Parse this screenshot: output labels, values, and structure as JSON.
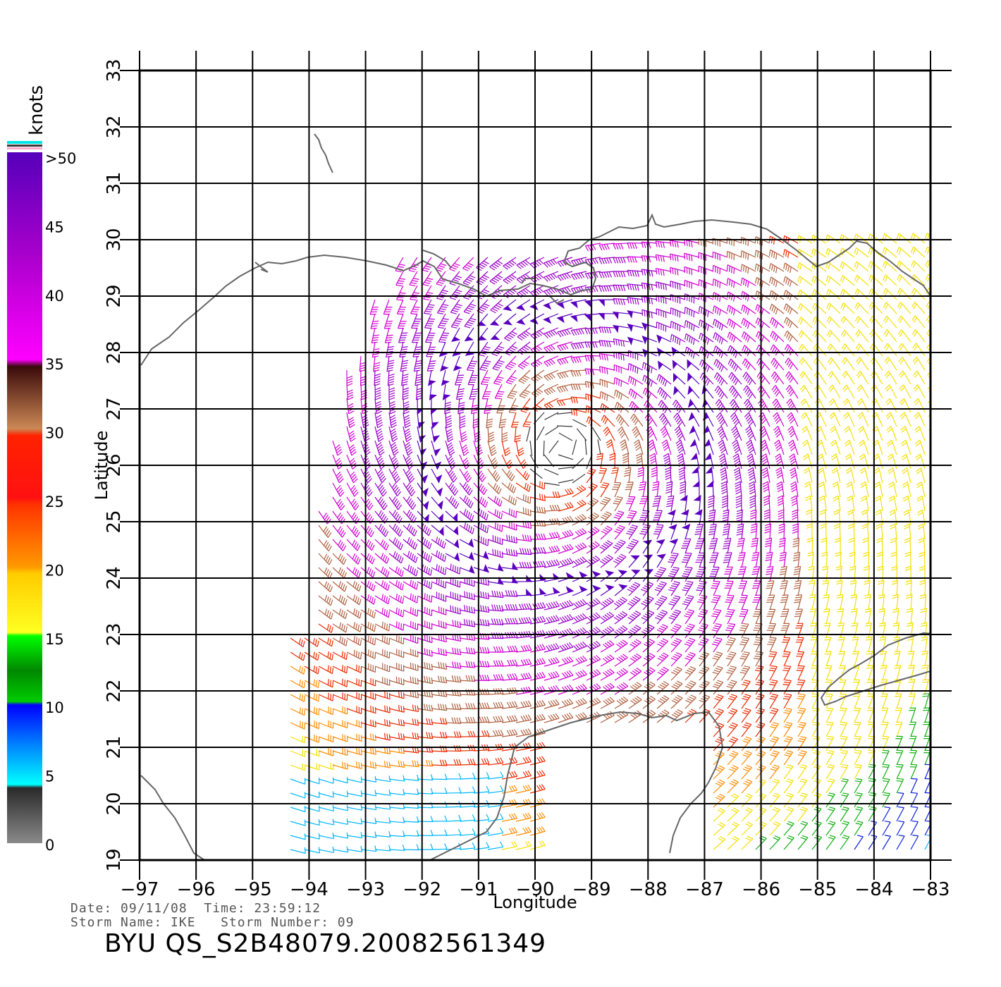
{
  "map": {
    "x_ticks": [
      "−97",
      "−96",
      "−95",
      "−94",
      "−93",
      "−92",
      "−91",
      "−90",
      "−89",
      "−88",
      "−87",
      "−86",
      "−85",
      "−84",
      "−83"
    ],
    "y_ticks": [
      "19",
      "20",
      "21",
      "22",
      "23",
      "24",
      "25",
      "26",
      "27",
      "28",
      "29",
      "30",
      "31",
      "32",
      "33"
    ],
    "lon_range": [
      -97,
      -83
    ],
    "lat_range": [
      19,
      33
    ],
    "xlabel": "Longitude",
    "ylabel": "Latitude",
    "storm_center": {
      "lon": -89.5,
      "lat": 26.3
    },
    "coastline_color": "#666666",
    "grid": true
  },
  "legend": {
    "unit": "knots",
    "labels": [
      ">50",
      "45",
      "40",
      "35",
      "30",
      "25",
      "20",
      "15",
      "10",
      "5",
      "0"
    ],
    "color_stops": [
      "#7a7a7a",
      "#2e2e2e",
      "#00ffff",
      "#0000ff",
      "#00a000",
      "#00ff00",
      "#ffff22",
      "#ffcc00",
      "#ff8800",
      "#ee2200",
      "#ff1111",
      "#c8855a",
      "#3a0a0a",
      "#ff00ff",
      "#aa00cc",
      "#5500bb"
    ]
  },
  "info": {
    "date_line": "Date: 09/11/08  Time: 23:59:12",
    "storm_line": "Storm Name: IKE   Storm Number: 09",
    "product": "BYU QS_S2B48079.20082561349"
  }
}
